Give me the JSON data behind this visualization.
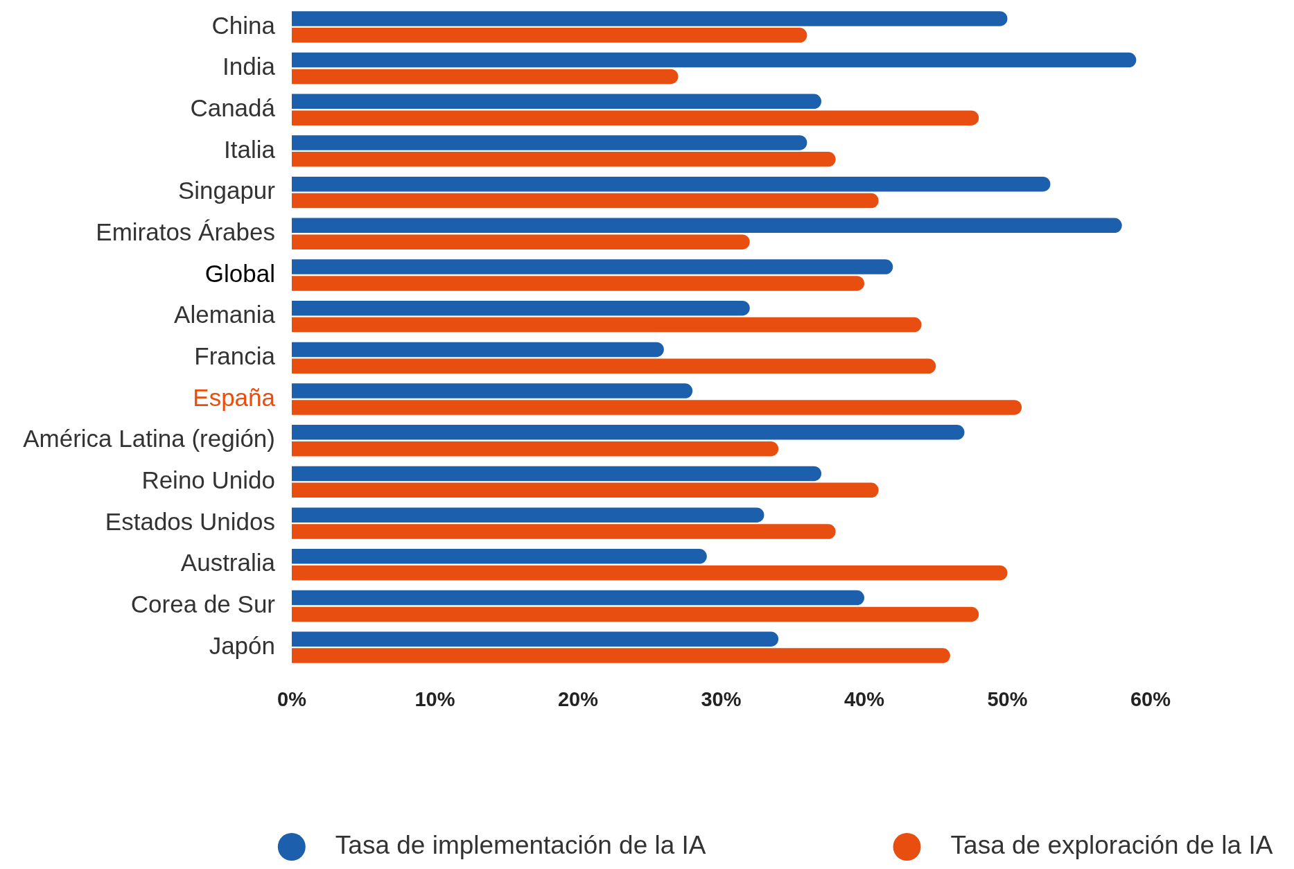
{
  "chart_data": {
    "type": "bar",
    "orientation": "horizontal",
    "categories": [
      "China",
      "India",
      "Canadá",
      "Italia",
      "Singapur",
      "Emiratos Árabes",
      "Global",
      "Alemania",
      "Francia",
      "España",
      "América Latina (región)",
      "Reino Unido",
      "Estados Unidos",
      "Australia",
      "Corea de Sur",
      "Japón"
    ],
    "series": [
      {
        "name": "Tasa de implementación de la IA",
        "color": "#1b5fad",
        "values": [
          50,
          59,
          37,
          36,
          53,
          58,
          42,
          32,
          26,
          28,
          47,
          37,
          33,
          29,
          40,
          34
        ]
      },
      {
        "name": "Tasa de exploración de la IA",
        "color": "#e84e0f",
        "values": [
          36,
          27,
          48,
          38,
          41,
          32,
          40,
          44,
          45,
          51,
          34,
          41,
          38,
          50,
          48,
          46
        ]
      }
    ],
    "xlim": [
      0,
      60
    ],
    "xticks": [
      {
        "value": 0,
        "label": "0%"
      },
      {
        "value": 10,
        "label": "10%"
      },
      {
        "value": 20,
        "label": "20%"
      },
      {
        "value": 30,
        "label": "30%"
      },
      {
        "value": 40,
        "label": "40%"
      },
      {
        "value": 50,
        "label": "50%"
      },
      {
        "value": 60,
        "label": "60%"
      }
    ],
    "grid": false,
    "legend": "bottom"
  }
}
